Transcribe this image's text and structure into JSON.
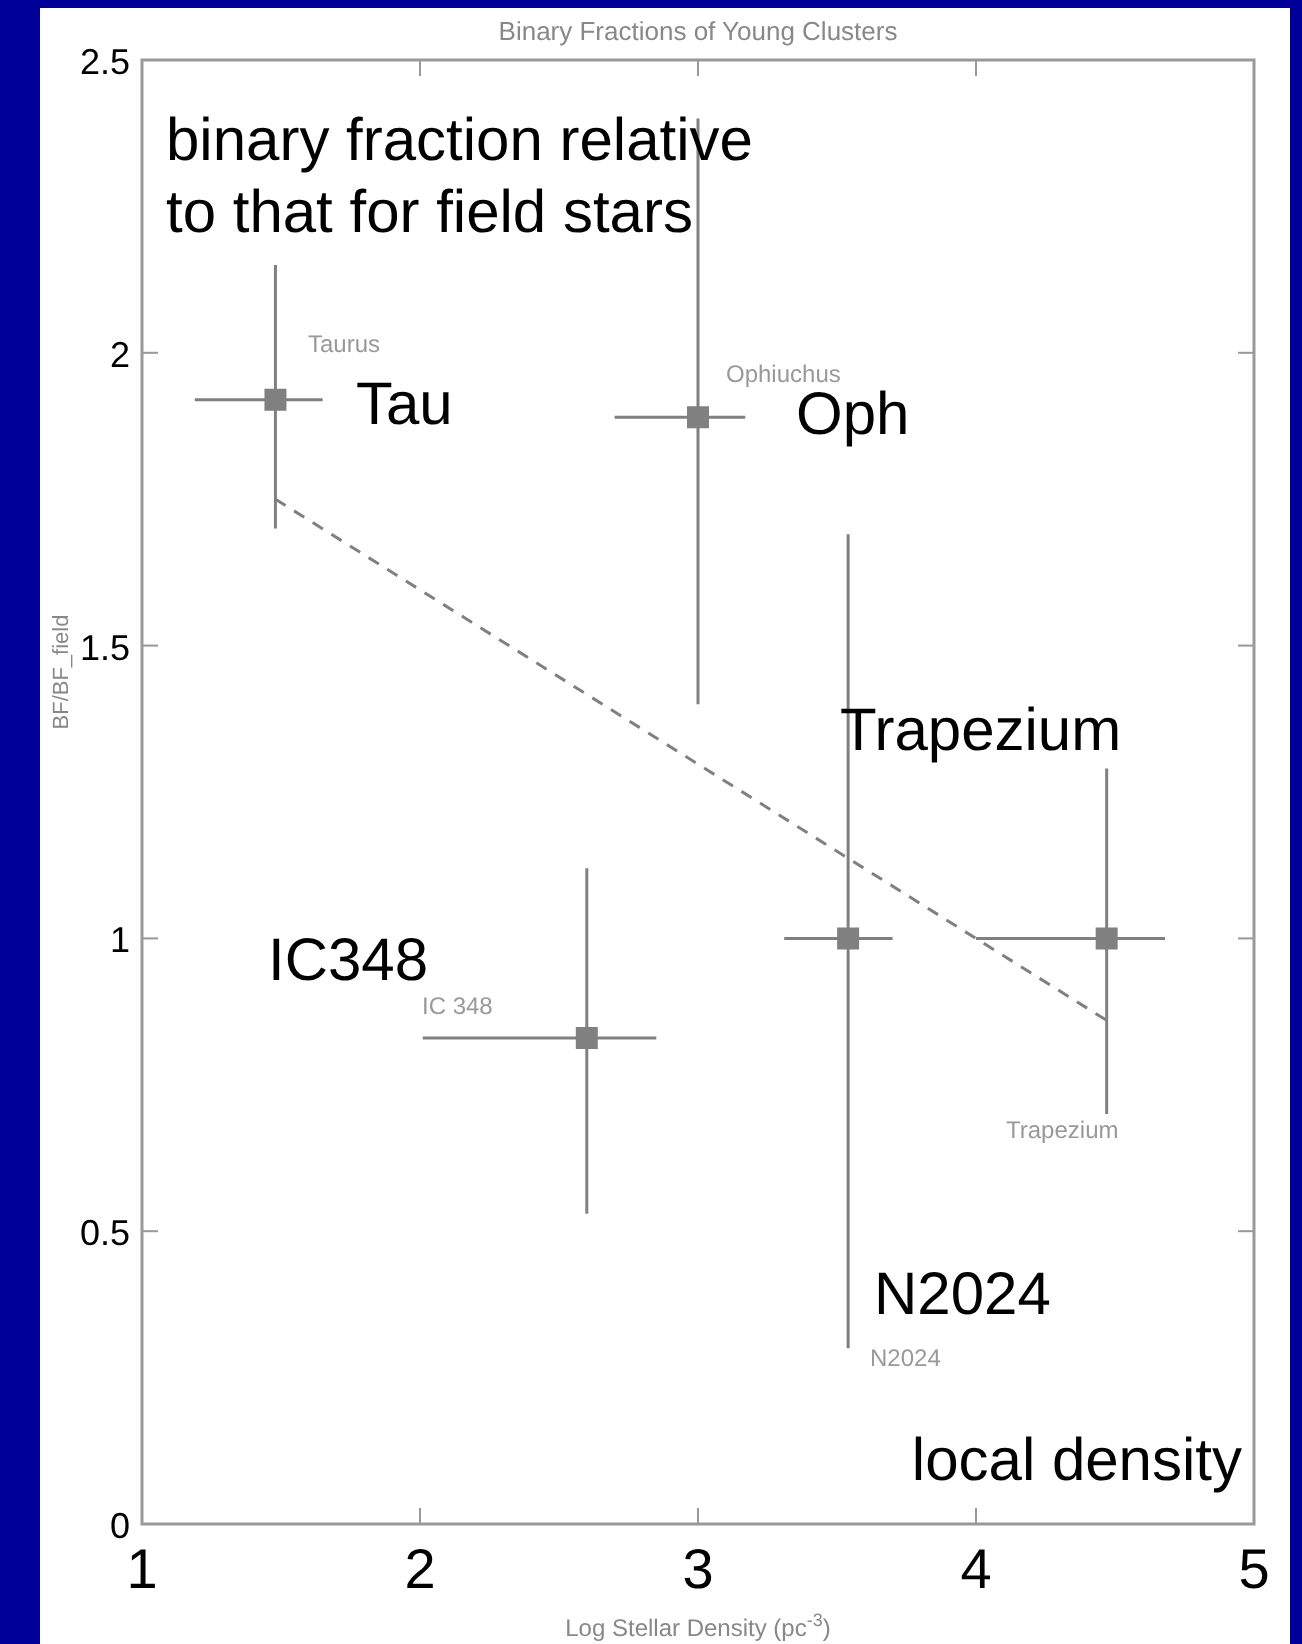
{
  "chart_data": {
    "type": "scatter",
    "title": "Binary Fractions of Young Clusters",
    "xlabel": "Log Stellar Density (pc$^{-3}$)",
    "ylabel": "BF/BF_field",
    "xlim": [
      1,
      5
    ],
    "ylim": [
      0,
      2.5
    ],
    "xticks": [
      1,
      2,
      3,
      4,
      5
    ],
    "yticks": [
      0,
      0.5,
      1,
      1.5,
      2,
      2.5
    ],
    "marker": "square",
    "grid": false,
    "series": [
      {
        "color": "#808080",
        "x": [
          1.48,
          3.0,
          2.6,
          3.54,
          4.47
        ],
        "values": [
          1.92,
          1.89,
          0.83,
          1.0,
          1.0
        ],
        "errors": [
          [
            1.7,
            2.15
          ],
          [
            1.4,
            2.4
          ],
          [
            0.53,
            1.12
          ],
          [
            0.3,
            1.69
          ],
          [
            0.7,
            1.29
          ]
        ],
        "xerrors": [
          [
            1.19,
            1.65
          ],
          [
            2.7,
            3.17
          ],
          [
            2.01,
            2.85
          ],
          [
            3.31,
            3.7
          ],
          [
            4.0,
            4.68
          ]
        ]
      },
      {
        "type": "line",
        "color": "#808080",
        "line_style": "dashed",
        "marker": "none",
        "x": [
          1.48,
          4.47
        ],
        "values": [
          1.75,
          0.86
        ]
      }
    ],
    "annotations": [
      "binary fraction relative to that for field stars",
      "local density",
      "Tau",
      "Oph",
      "IC348",
      "N2024",
      "Trapezium",
      "Taurus",
      "Ophiuchus",
      "IC 348",
      "N2024",
      "Trapezium"
    ]
  }
}
